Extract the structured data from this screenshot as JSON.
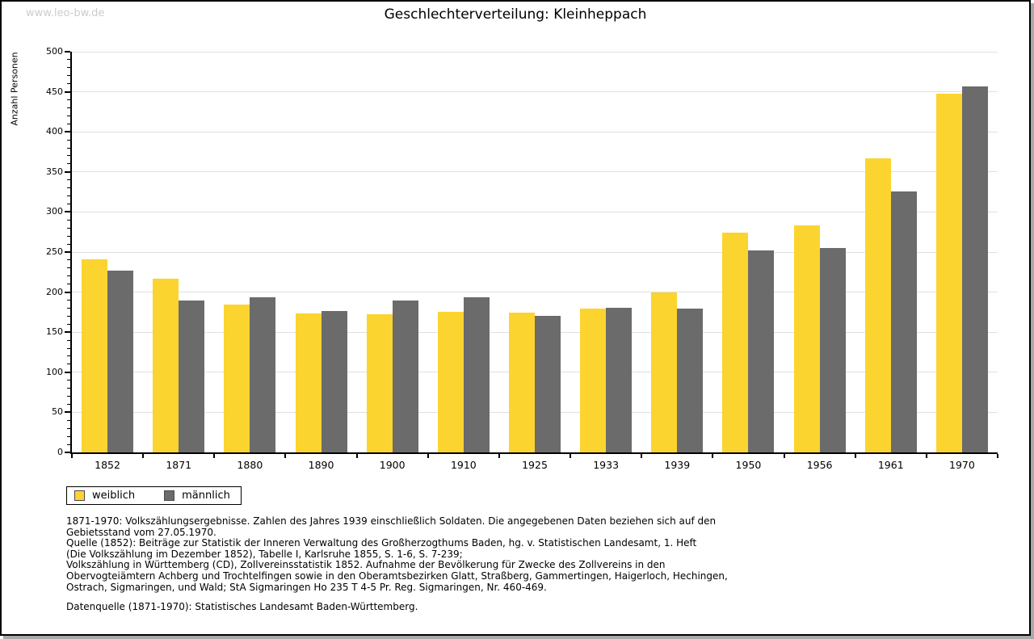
{
  "watermark": "www.leo-bw.de",
  "title": "Geschlechterverteilung: Kleinheppach",
  "chart_data": {
    "type": "bar",
    "title": "Geschlechterverteilung: Kleinheppach",
    "xlabel": "",
    "ylabel": "Anzahl Personen",
    "ylim": [
      0,
      500
    ],
    "ytick_step": 50,
    "minor_tick_step": 10,
    "grid": true,
    "legend_position": "bottom-left",
    "categories": [
      "1852",
      "1871",
      "1880",
      "1890",
      "1900",
      "1910",
      "1925",
      "1933",
      "1939",
      "1950",
      "1956",
      "1961",
      "1970"
    ],
    "series": [
      {
        "name": "weiblich",
        "color": "#fbd42f",
        "values": [
          241,
          217,
          184,
          173,
          172,
          175,
          174,
          179,
          200,
          274,
          283,
          367,
          448
        ]
      },
      {
        "name": "männlich",
        "color": "#6b6b6b",
        "values": [
          227,
          190,
          194,
          176,
          190,
          194,
          170,
          180,
          179,
          252,
          255,
          326,
          457
        ]
      }
    ]
  },
  "footnotes": [
    "1871-1970: Volkszählungsergebnisse. Zahlen des Jahres 1939 einschließlich Soldaten. Die angegebenen Daten beziehen sich auf den",
    "Gebietsstand vom 27.05.1970.",
    "Quelle (1852): Beiträge zur Statistik der Inneren Verwaltung des Großherzogthums Baden, hg. v. Statistischen Landesamt, 1. Heft",
    "(Die Volkszählung im Dezember 1852), Tabelle I, Karlsruhe 1855, S. 1-6, S. 7-239;",
    "Volkszählung in Württemberg (CD), Zollvereinsstatistik 1852. Aufnahme der Bevölkerung für Zwecke des Zollvereins in den",
    "Obervogteiämtern Achberg und Trochtelfingen sowie in den Oberamtsbezirken Glatt, Straßberg, Gammertingen, Haigerloch, Hechingen,",
    "Ostrach, Sigmaringen, und Wald; StA Sigmaringen Ho 235 T 4-5 Pr. Reg. Sigmaringen, Nr. 460-469."
  ],
  "datasource": "Datenquelle (1871-1970): Statistisches Landesamt Baden-Württemberg."
}
